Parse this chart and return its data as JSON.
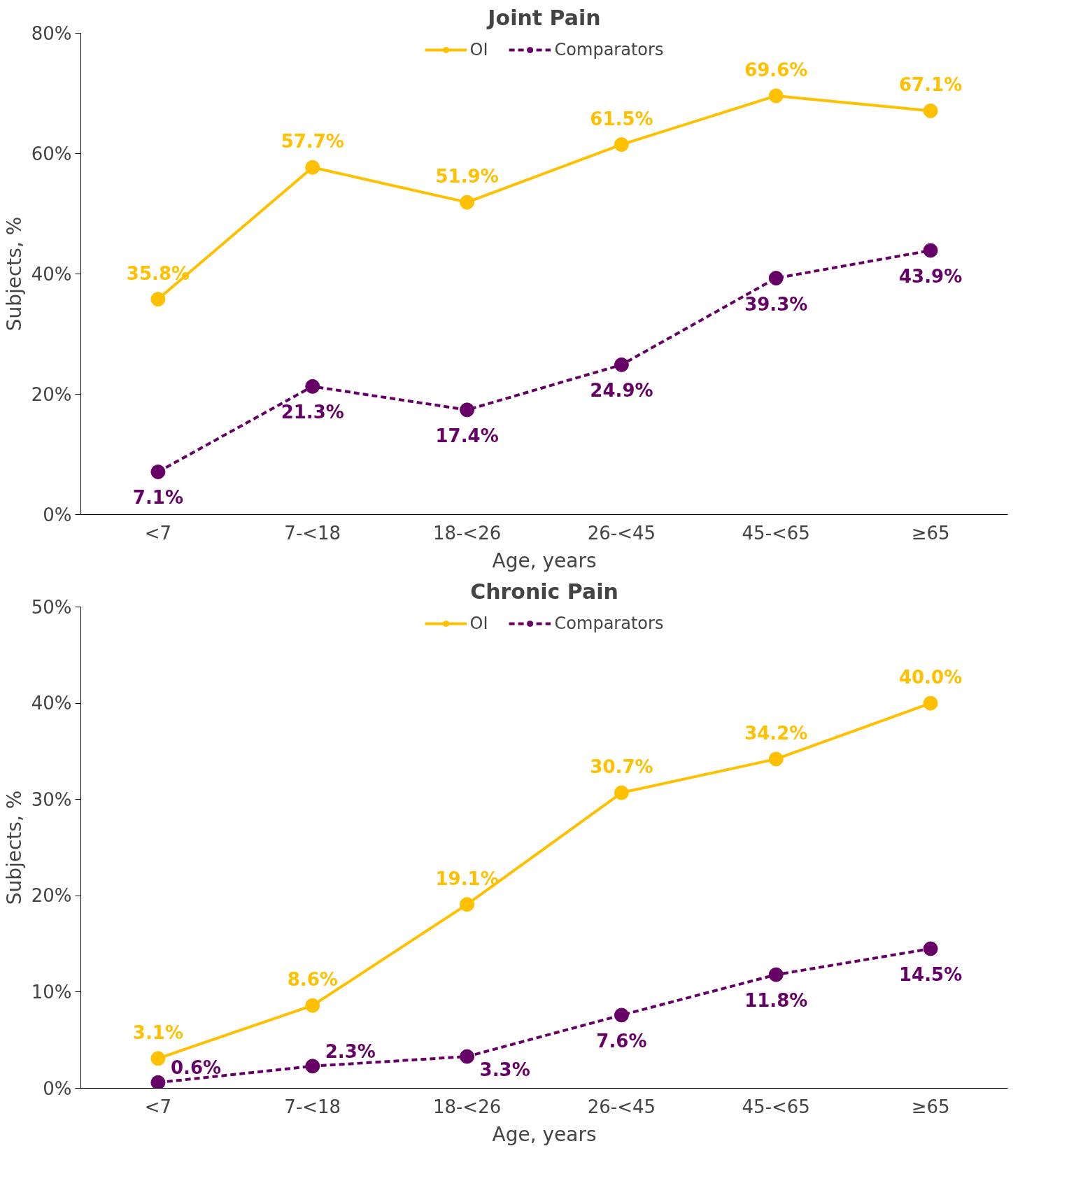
{
  "chart_data": [
    {
      "type": "line",
      "title": "Joint Pain",
      "xlabel": "Age, years",
      "ylabel": "Subjects, %",
      "categories": [
        "<7",
        "7-<18",
        "18-<26",
        "26-<45",
        "45-<65",
        "≥65"
      ],
      "series": [
        {
          "name": "OI",
          "color": "#ffc000",
          "line_style": "solid",
          "values": [
            35.8,
            57.7,
            51.9,
            61.5,
            69.6,
            67.1
          ],
          "value_labels": [
            "35.8%",
            "57.7%",
            "51.9%",
            "61.5%",
            "69.6%",
            "67.1%"
          ]
        },
        {
          "name": "Comparators",
          "color": "#660066",
          "line_style": "dashed",
          "values": [
            7.1,
            21.3,
            17.4,
            24.9,
            39.3,
            43.9
          ],
          "value_labels": [
            "7.1%",
            "21.3%",
            "17.4%",
            "24.9%",
            "39.3%",
            "43.9%"
          ]
        }
      ],
      "ylim": [
        0,
        80
      ],
      "yticks": [
        {
          "value": 0,
          "label": "0%"
        },
        {
          "value": 20,
          "label": "20%"
        },
        {
          "value": 40,
          "label": "40%"
        },
        {
          "value": 60,
          "label": "60%"
        },
        {
          "value": 80,
          "label": "80%"
        }
      ],
      "marker": "circle",
      "legend": "top",
      "grid": false
    },
    {
      "type": "line",
      "title": "Chronic Pain",
      "xlabel": "Age, years",
      "ylabel": "Subjects, %",
      "categories": [
        "<7",
        "7-<18",
        "18-<26",
        "26-<45",
        "45-<65",
        "≥65"
      ],
      "series": [
        {
          "name": "OI",
          "color": "#ffc000",
          "line_style": "solid",
          "values": [
            3.1,
            8.6,
            19.1,
            30.7,
            34.2,
            40.0
          ],
          "value_labels": [
            "3.1%",
            "8.6%",
            "19.1%",
            "30.7%",
            "34.2%",
            "40.0%"
          ]
        },
        {
          "name": "Comparators",
          "color": "#660066",
          "line_style": "dashed",
          "values": [
            0.6,
            2.3,
            3.3,
            7.6,
            11.8,
            14.5
          ],
          "value_labels": [
            "0.6%",
            "2.3%",
            "3.3%",
            "7.6%",
            "11.8%",
            "14.5%"
          ]
        }
      ],
      "ylim": [
        0,
        50
      ],
      "yticks": [
        {
          "value": 0,
          "label": "0%"
        },
        {
          "value": 10,
          "label": "10%"
        },
        {
          "value": 20,
          "label": "20%"
        },
        {
          "value": 30,
          "label": "30%"
        },
        {
          "value": 40,
          "label": "40%"
        },
        {
          "value": 50,
          "label": "50%"
        }
      ],
      "marker": "circle",
      "legend": "top",
      "grid": false
    }
  ]
}
